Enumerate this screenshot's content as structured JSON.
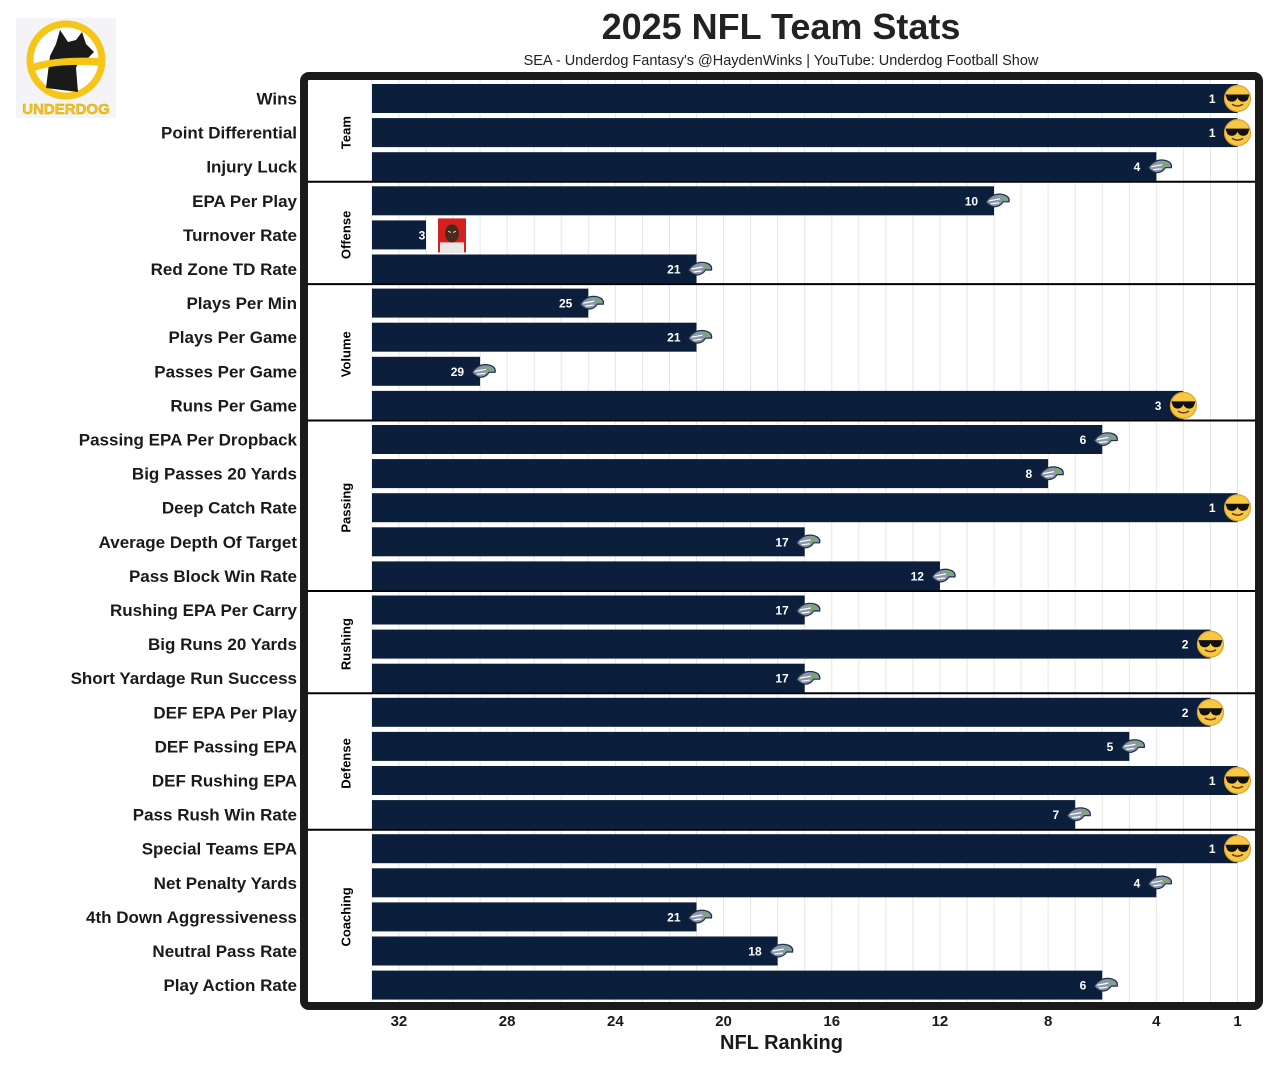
{
  "header": {
    "title": "2025 NFL Team Stats",
    "subtitle": "SEA - Underdog Fantasy's @HaydenWinks | YouTube: Underdog Football Show",
    "logo_text": "UNDERDOG"
  },
  "colors": {
    "bar": "#0b1e3b",
    "panel_border": "#1b1b1b",
    "grid": "#e6e6e6",
    "logo_yellow": "#f5c518"
  },
  "chart_data": {
    "type": "bar",
    "orientation": "horizontal",
    "title": "2025 NFL Team Stats",
    "subtitle": "SEA - Underdog Fantasy's @HaydenWinks | YouTube: Underdog Football Show",
    "xlabel": "NFL Ranking",
    "ylabel": "",
    "x_reversed": true,
    "xlim": [
      33,
      0.5
    ],
    "xticks": [
      32,
      28,
      24,
      20,
      16,
      12,
      8,
      4,
      1
    ],
    "grid": true,
    "legend": "none",
    "groups": [
      {
        "name": "Team",
        "items": [
          {
            "label": "Wins",
            "rank": 1,
            "marker": "sunglasses-emoji"
          },
          {
            "label": "Point Differential",
            "rank": 1,
            "marker": "sunglasses-emoji"
          },
          {
            "label": "Injury Luck",
            "rank": 4,
            "marker": "seahawks-logo"
          }
        ]
      },
      {
        "name": "Offense",
        "items": [
          {
            "label": "EPA Per Play",
            "rank": 10,
            "marker": "seahawks-logo"
          },
          {
            "label": "Turnover Rate",
            "rank": 31,
            "marker": "crying-face-photo"
          },
          {
            "label": "Red Zone TD Rate",
            "rank": 21,
            "marker": "seahawks-logo"
          }
        ]
      },
      {
        "name": "Volume",
        "items": [
          {
            "label": "Plays Per Min",
            "rank": 25,
            "marker": "seahawks-logo"
          },
          {
            "label": "Plays Per Game",
            "rank": 21,
            "marker": "seahawks-logo"
          },
          {
            "label": "Passes Per Game",
            "rank": 29,
            "marker": "seahawks-logo"
          },
          {
            "label": "Runs Per Game",
            "rank": 3,
            "marker": "sunglasses-emoji"
          }
        ]
      },
      {
        "name": "Passing",
        "items": [
          {
            "label": "Passing EPA Per Dropback",
            "rank": 6,
            "marker": "seahawks-logo"
          },
          {
            "label": "Big Passes 20 Yards",
            "rank": 8,
            "marker": "seahawks-logo"
          },
          {
            "label": "Deep Catch Rate",
            "rank": 1,
            "marker": "sunglasses-emoji"
          },
          {
            "label": "Average Depth Of Target",
            "rank": 17,
            "marker": "seahawks-logo"
          },
          {
            "label": "Pass Block Win Rate",
            "rank": 12,
            "marker": "seahawks-logo"
          }
        ]
      },
      {
        "name": "Rushing",
        "items": [
          {
            "label": "Rushing EPA Per Carry",
            "rank": 17,
            "marker": "seahawks-logo"
          },
          {
            "label": "Big Runs 20 Yards",
            "rank": 2,
            "marker": "sunglasses-emoji"
          },
          {
            "label": "Short Yardage Run Success",
            "rank": 17,
            "marker": "seahawks-logo"
          }
        ]
      },
      {
        "name": "Defense",
        "items": [
          {
            "label": "DEF EPA Per Play",
            "rank": 2,
            "marker": "sunglasses-emoji"
          },
          {
            "label": "DEF Passing EPA",
            "rank": 5,
            "marker": "seahawks-logo"
          },
          {
            "label": "DEF Rushing EPA",
            "rank": 1,
            "marker": "sunglasses-emoji"
          },
          {
            "label": "Pass Rush Win Rate",
            "rank": 7,
            "marker": "seahawks-logo"
          }
        ]
      },
      {
        "name": "Coaching",
        "items": [
          {
            "label": "Special Teams EPA",
            "rank": 1,
            "marker": "sunglasses-emoji"
          },
          {
            "label": "Net Penalty Yards",
            "rank": 4,
            "marker": "seahawks-logo"
          },
          {
            "label": "4th Down Aggressiveness",
            "rank": 21,
            "marker": "seahawks-logo"
          },
          {
            "label": "Neutral Pass Rate",
            "rank": 18,
            "marker": "seahawks-logo"
          },
          {
            "label": "Play Action Rate",
            "rank": 6,
            "marker": "seahawks-logo"
          }
        ]
      }
    ]
  }
}
